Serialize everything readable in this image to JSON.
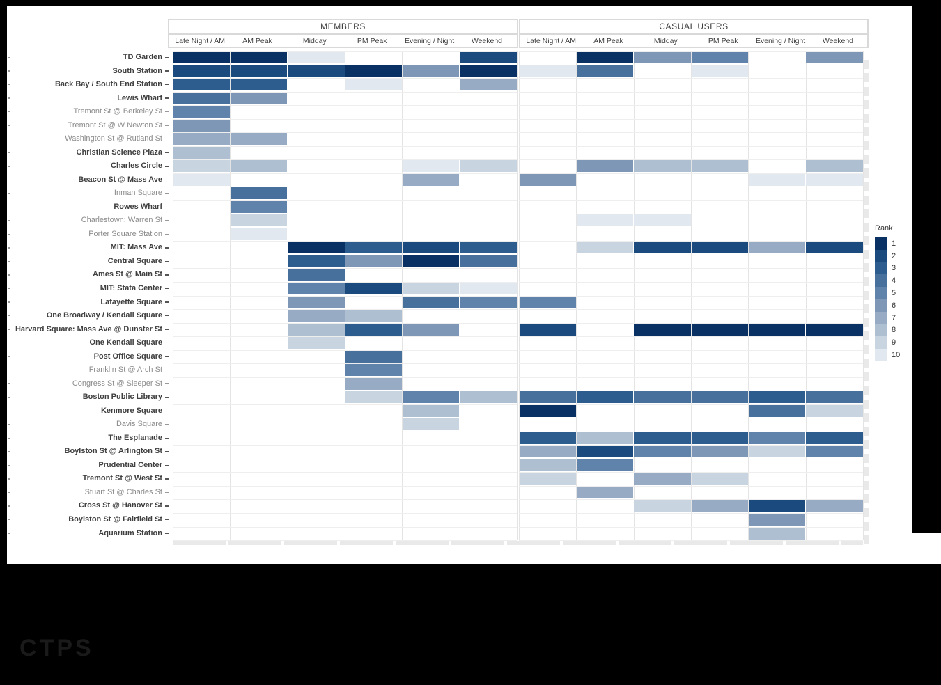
{
  "page": {
    "background": "#000000",
    "logo_text": "CTPS"
  },
  "chart_data": {
    "type": "heatmap",
    "title": "",
    "col_groups": [
      "MEMBERS",
      "CASUAL USERS"
    ],
    "columns": [
      "Late Night / AM",
      "AM Peak",
      "Midday",
      "PM Peak",
      "Evening / Night",
      "Weekend"
    ],
    "legend": {
      "title": "Rank",
      "labels": [
        "1",
        "2",
        "3",
        "4",
        "5",
        "6",
        "7",
        "8",
        "9",
        "10"
      ],
      "colors": [
        "#0a3164",
        "#1b4a7e",
        "#2d5c8e",
        "#47719c",
        "#5f83ab",
        "#7e97b6",
        "#97abc4",
        "#aebfd2",
        "#c9d4e1",
        "#e1e8ef"
      ]
    },
    "rows": [
      {
        "label": "TD Garden",
        "bold": true,
        "members": [
          1,
          1,
          10,
          null,
          null,
          2
        ],
        "casual": [
          null,
          1,
          6,
          5,
          null,
          6
        ]
      },
      {
        "label": "South Station",
        "bold": true,
        "members": [
          2,
          2,
          2,
          1,
          6,
          1
        ],
        "casual": [
          10,
          4,
          null,
          10,
          null,
          null
        ]
      },
      {
        "label": "Back Bay / South End Station",
        "bold": true,
        "members": [
          3,
          3,
          null,
          10,
          null,
          7
        ],
        "casual": [
          null,
          null,
          null,
          null,
          null,
          null
        ]
      },
      {
        "label": "Lewis Wharf",
        "bold": true,
        "members": [
          4,
          6,
          null,
          null,
          null,
          null
        ],
        "casual": [
          null,
          null,
          null,
          null,
          null,
          null
        ]
      },
      {
        "label": "Tremont St @ Berkeley St",
        "bold": false,
        "members": [
          5,
          null,
          null,
          null,
          null,
          null
        ],
        "casual": [
          null,
          null,
          null,
          null,
          null,
          null
        ]
      },
      {
        "label": "Tremont St @ W Newton St",
        "bold": false,
        "members": [
          6,
          null,
          null,
          null,
          null,
          null
        ],
        "casual": [
          null,
          null,
          null,
          null,
          null,
          null
        ]
      },
      {
        "label": "Washington St @ Rutland St",
        "bold": false,
        "members": [
          7,
          7,
          null,
          null,
          null,
          null
        ],
        "casual": [
          null,
          null,
          null,
          null,
          null,
          null
        ]
      },
      {
        "label": "Christian Science Plaza",
        "bold": true,
        "members": [
          8,
          null,
          null,
          null,
          null,
          null
        ],
        "casual": [
          null,
          null,
          null,
          null,
          null,
          null
        ]
      },
      {
        "label": "Charles Circle",
        "bold": true,
        "members": [
          9,
          8,
          null,
          null,
          10,
          9
        ],
        "casual": [
          null,
          6,
          8,
          8,
          null,
          8
        ]
      },
      {
        "label": "Beacon St @ Mass Ave",
        "bold": true,
        "members": [
          10,
          null,
          null,
          null,
          7,
          null
        ],
        "casual": [
          6,
          null,
          null,
          null,
          10,
          10
        ]
      },
      {
        "label": "Inman Square",
        "bold": false,
        "members": [
          null,
          4,
          null,
          null,
          null,
          null
        ],
        "casual": [
          null,
          null,
          null,
          null,
          null,
          null
        ]
      },
      {
        "label": "Rowes Wharf",
        "bold": true,
        "members": [
          null,
          5,
          null,
          null,
          null,
          null
        ],
        "casual": [
          null,
          null,
          null,
          null,
          null,
          null
        ]
      },
      {
        "label": "Charlestown: Warren St",
        "bold": false,
        "members": [
          null,
          9,
          null,
          null,
          null,
          null
        ],
        "casual": [
          null,
          10,
          10,
          null,
          null,
          null
        ]
      },
      {
        "label": "Porter Square Station",
        "bold": false,
        "members": [
          null,
          10,
          null,
          null,
          null,
          null
        ],
        "casual": [
          null,
          null,
          null,
          null,
          null,
          null
        ]
      },
      {
        "label": "MIT: Mass Ave",
        "bold": true,
        "members": [
          null,
          null,
          1,
          3,
          2,
          3
        ],
        "casual": [
          null,
          9,
          2,
          2,
          7,
          2
        ]
      },
      {
        "label": "Central Square",
        "bold": true,
        "members": [
          null,
          null,
          3,
          6,
          1,
          4
        ],
        "casual": [
          null,
          null,
          null,
          null,
          null,
          null
        ]
      },
      {
        "label": "Ames St @ Main St",
        "bold": true,
        "members": [
          null,
          null,
          4,
          null,
          null,
          null
        ],
        "casual": [
          null,
          null,
          null,
          null,
          null,
          null
        ]
      },
      {
        "label": "MIT: Stata Center",
        "bold": true,
        "members": [
          null,
          null,
          5,
          2,
          9,
          10
        ],
        "casual": [
          null,
          null,
          null,
          null,
          null,
          null
        ]
      },
      {
        "label": "Lafayette Square",
        "bold": true,
        "members": [
          null,
          null,
          6,
          null,
          4,
          5
        ],
        "casual": [
          5,
          null,
          null,
          null,
          null,
          null
        ]
      },
      {
        "label": "One Broadway / Kendall Square",
        "bold": true,
        "members": [
          null,
          null,
          7,
          8,
          null,
          null
        ],
        "casual": [
          null,
          null,
          null,
          null,
          null,
          null
        ]
      },
      {
        "label": "Harvard Square: Mass Ave @ Dunster St",
        "bold": true,
        "members": [
          null,
          null,
          8,
          3,
          6,
          null
        ],
        "casual": [
          2,
          null,
          1,
          1,
          1,
          1
        ]
      },
      {
        "label": "One Kendall Square",
        "bold": true,
        "members": [
          null,
          null,
          9,
          null,
          null,
          null
        ],
        "casual": [
          null,
          null,
          null,
          null,
          null,
          null
        ]
      },
      {
        "label": "Post Office Square",
        "bold": true,
        "members": [
          null,
          null,
          null,
          4,
          null,
          null
        ],
        "casual": [
          null,
          null,
          null,
          null,
          null,
          null
        ]
      },
      {
        "label": "Franklin St @ Arch St",
        "bold": false,
        "members": [
          null,
          null,
          null,
          5,
          null,
          null
        ],
        "casual": [
          null,
          null,
          null,
          null,
          null,
          null
        ]
      },
      {
        "label": "Congress St @ Sleeper St",
        "bold": false,
        "members": [
          null,
          null,
          null,
          7,
          null,
          null
        ],
        "casual": [
          null,
          null,
          null,
          null,
          null,
          null
        ]
      },
      {
        "label": "Boston Public Library",
        "bold": true,
        "members": [
          null,
          null,
          null,
          9,
          5,
          8
        ],
        "casual": [
          4,
          3,
          4,
          4,
          3,
          4
        ]
      },
      {
        "label": "Kenmore Square",
        "bold": true,
        "members": [
          null,
          null,
          null,
          null,
          8,
          null
        ],
        "casual": [
          1,
          null,
          null,
          null,
          4,
          9
        ]
      },
      {
        "label": "Davis Square",
        "bold": false,
        "members": [
          null,
          null,
          null,
          null,
          9,
          null
        ],
        "casual": [
          null,
          null,
          null,
          null,
          null,
          null
        ]
      },
      {
        "label": "The Esplanade",
        "bold": true,
        "members": [
          null,
          null,
          null,
          null,
          null,
          null
        ],
        "casual": [
          3,
          8,
          3,
          3,
          5,
          3
        ]
      },
      {
        "label": "Boylston St @ Arlington St",
        "bold": true,
        "members": [
          null,
          null,
          null,
          null,
          null,
          null
        ],
        "casual": [
          7,
          2,
          5,
          6,
          9,
          5
        ]
      },
      {
        "label": "Prudential Center",
        "bold": true,
        "members": [
          null,
          null,
          null,
          null,
          null,
          null
        ],
        "casual": [
          8,
          5,
          null,
          null,
          null,
          null
        ]
      },
      {
        "label": "Tremont St @ West St",
        "bold": true,
        "members": [
          null,
          null,
          null,
          null,
          null,
          null
        ],
        "casual": [
          9,
          null,
          7,
          9,
          null,
          null
        ]
      },
      {
        "label": "Stuart St @ Charles St",
        "bold": false,
        "members": [
          null,
          null,
          null,
          null,
          null,
          null
        ],
        "casual": [
          null,
          7,
          null,
          null,
          null,
          null
        ]
      },
      {
        "label": "Cross St @ Hanover St",
        "bold": true,
        "members": [
          null,
          null,
          null,
          null,
          null,
          null
        ],
        "casual": [
          null,
          null,
          9,
          7,
          2,
          7
        ]
      },
      {
        "label": "Boylston St @ Fairfield St",
        "bold": true,
        "members": [
          null,
          null,
          null,
          null,
          null,
          null
        ],
        "casual": [
          null,
          null,
          null,
          null,
          6,
          null
        ]
      },
      {
        "label": "Aquarium Station",
        "bold": true,
        "members": [
          null,
          null,
          null,
          null,
          null,
          null
        ],
        "casual": [
          null,
          null,
          null,
          null,
          8,
          null
        ]
      }
    ]
  }
}
